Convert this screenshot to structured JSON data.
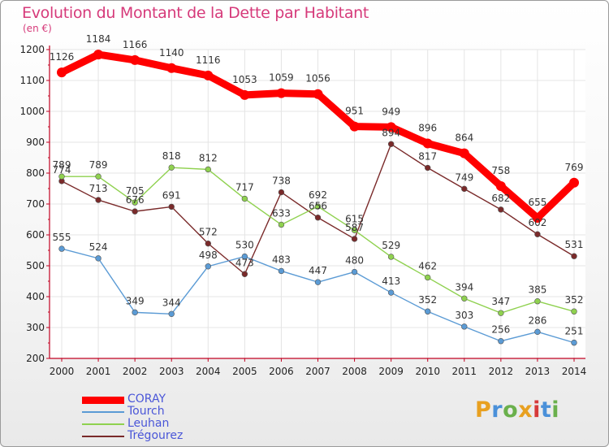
{
  "title": "Evolution du Montant de la Dette par Habitant",
  "unit_label": "(en €)",
  "logo": {
    "text": "Proxiti",
    "colors": [
      "#e8a020",
      "#4a90d9",
      "#6ab04c",
      "#e8a020",
      "#d63a3a",
      "#4a90d9",
      "#6ab04c"
    ]
  },
  "chart_data": {
    "type": "line",
    "title": "Evolution du Montant de la Dette par Habitant",
    "ylabel": "(en €)",
    "xlabel": "",
    "x": [
      "2000",
      "2001",
      "2002",
      "2003",
      "2004",
      "2005",
      "2006",
      "2007",
      "2008",
      "2009",
      "2010",
      "2011",
      "2012",
      "2013",
      "2014"
    ],
    "ylim": [
      200,
      1200
    ],
    "yticks": [
      200,
      300,
      400,
      500,
      600,
      700,
      800,
      900,
      1000,
      1100,
      1200
    ],
    "grid": true,
    "legend_position": "bottom-left",
    "series": [
      {
        "name": "CORAY",
        "color": "#ff0000",
        "values": [
          1126,
          1184,
          1166,
          1140,
          1116,
          1053,
          1059,
          1056,
          951,
          949,
          896,
          864,
          758,
          655,
          769
        ]
      },
      {
        "name": "Tourch",
        "color": "#5b9bd5",
        "values": [
          555,
          524,
          349,
          344,
          498,
          530,
          483,
          447,
          480,
          413,
          352,
          303,
          256,
          286,
          251
        ]
      },
      {
        "name": "Leuhan",
        "color": "#8fd14f",
        "values": [
          789,
          789,
          705,
          818,
          812,
          717,
          633,
          692,
          615,
          529,
          462,
          394,
          347,
          385,
          352
        ]
      },
      {
        "name": "Trégourez",
        "color": "#7a2a2a",
        "values": [
          774,
          713,
          676,
          691,
          572,
          473,
          738,
          656,
          587,
          894,
          817,
          749,
          682,
          602,
          531
        ]
      }
    ]
  }
}
